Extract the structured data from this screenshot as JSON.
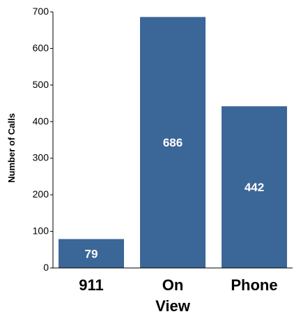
{
  "chart_data": {
    "type": "bar",
    "title": "",
    "xlabel": "",
    "ylabel": "Number of Calls",
    "categories": [
      "911",
      "On View",
      "Phone"
    ],
    "category_lines": [
      [
        "911"
      ],
      [
        "On",
        "View"
      ],
      [
        "Phone"
      ]
    ],
    "values": [
      79,
      686,
      442
    ],
    "data_labels": [
      "79",
      "686",
      "442"
    ],
    "ylim": [
      0,
      700
    ],
    "yticks": [
      0,
      100,
      200,
      300,
      400,
      500,
      600,
      700
    ],
    "grid": false,
    "legend": "none",
    "bar_color": "#3B6698",
    "label_color": "#FFFFFF",
    "axis_color": "#000000"
  }
}
